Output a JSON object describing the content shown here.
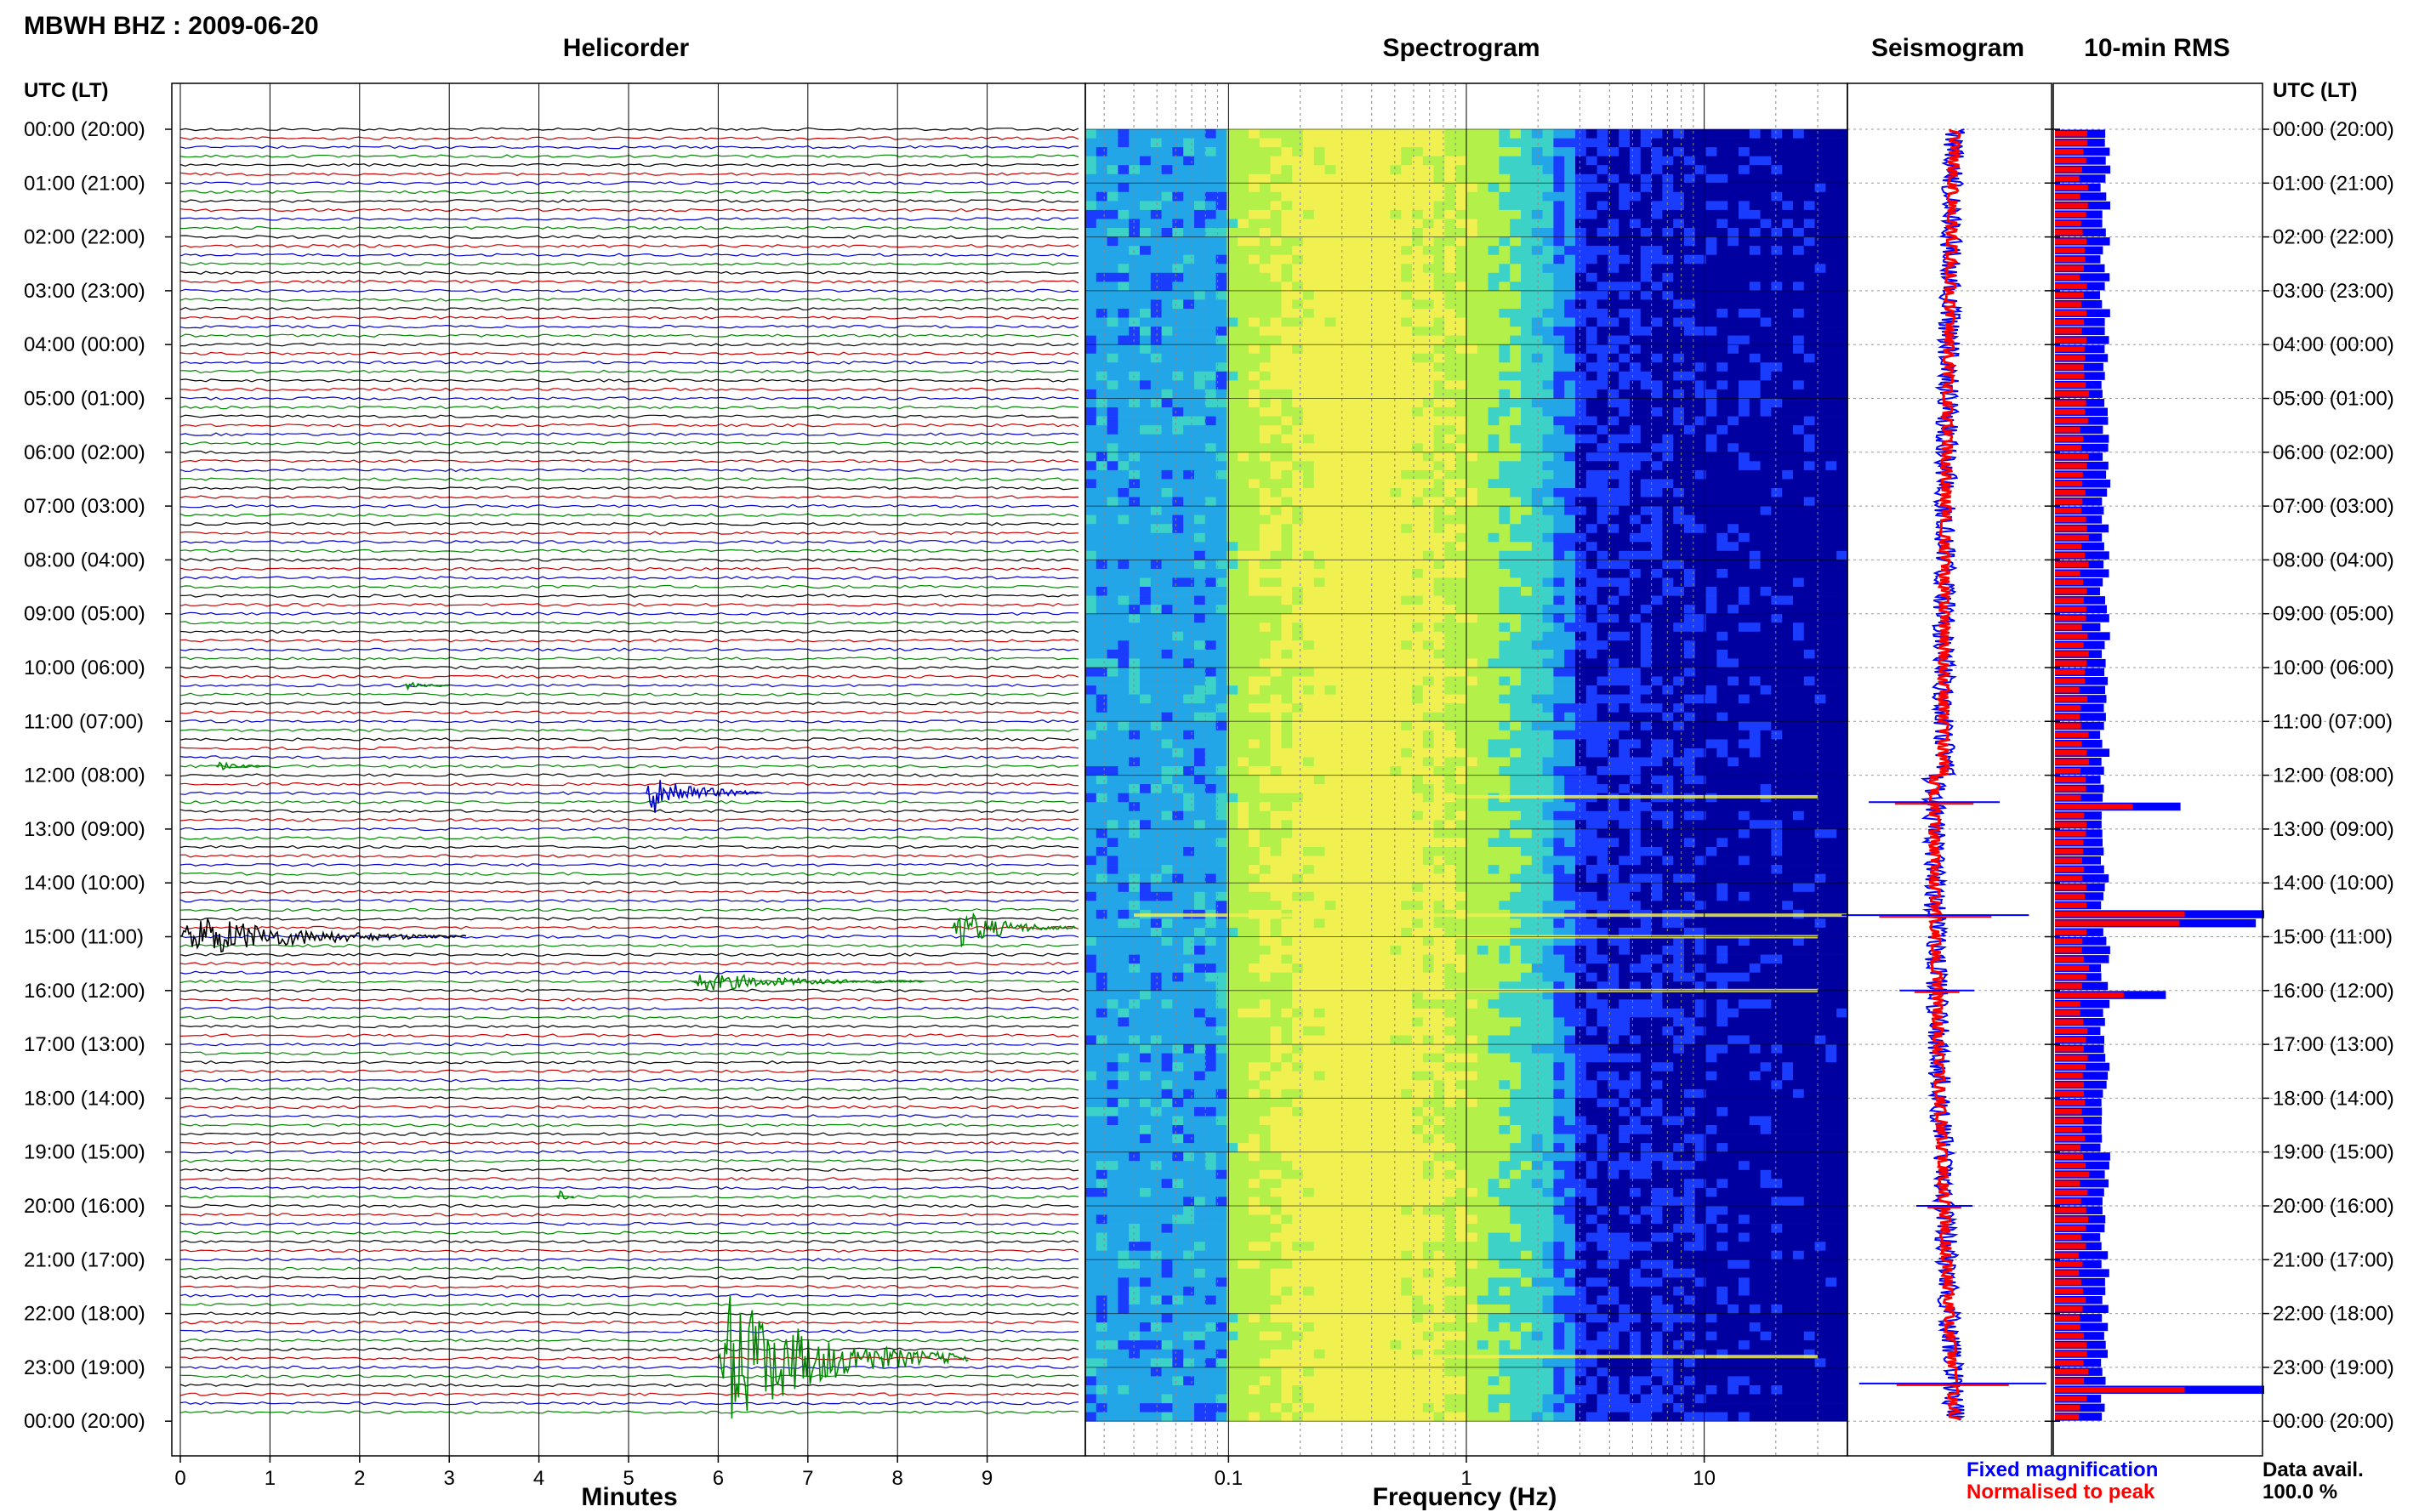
{
  "header": {
    "station_title": "MBWH BHZ : 2009-06-20",
    "panel_helicorder": "Helicorder",
    "panel_spectrogram": "Spectrogram",
    "panel_seismogram": "Seismogram",
    "panel_rms": "10-min RMS",
    "time_axis_left": "UTC (LT)",
    "time_axis_right": "UTC (LT)"
  },
  "footer": {
    "minutes_axis": "Minutes",
    "frequency_axis": "Frequency (Hz)",
    "legend_fixed": "Fixed magnification",
    "legend_normalised": "Normalised to peak",
    "data_avail_label": "Data avail.",
    "data_avail_value": "100.0 %"
  },
  "chart_data": [
    {
      "type": "line",
      "panel": "Helicorder",
      "xlabel": "Minutes",
      "ylabel": "UTC (LT)",
      "x_ticks": [
        "0",
        "1",
        "2",
        "3",
        "4",
        "5",
        "6",
        "7",
        "8",
        "9"
      ],
      "xlim": [
        0,
        10
      ],
      "time_labels": [
        "00:00 (20:00)",
        "01:00 (21:00)",
        "02:00 (22:00)",
        "03:00 (23:00)",
        "04:00 (00:00)",
        "05:00 (01:00)",
        "06:00 (02:00)",
        "07:00 (03:00)",
        "08:00 (04:00)",
        "09:00 (05:00)",
        "10:00 (06:00)",
        "11:00 (07:00)",
        "12:00 (08:00)",
        "13:00 (09:00)",
        "14:00 (10:00)",
        "15:00 (11:00)",
        "16:00 (12:00)",
        "17:00 (13:00)",
        "18:00 (14:00)",
        "19:00 (15:00)",
        "20:00 (16:00)",
        "21:00 (17:00)",
        "22:00 (18:00)",
        "23:00 (19:00)",
        "00:00 (20:00)"
      ],
      "trace_colors": [
        "#000000",
        "#cc0000",
        "#0000cc",
        "#008800"
      ],
      "events": [
        {
          "hour": 10.33,
          "start_min": 2.5,
          "dur_min": 0.5,
          "amp": 0.25,
          "color": "#008800"
        },
        {
          "hour": 11.83,
          "start_min": 0.4,
          "dur_min": 0.6,
          "amp": 0.25,
          "color": "#008800"
        },
        {
          "hour": 12.33,
          "start_min": 5.2,
          "dur_min": 1.3,
          "amp": 1.3,
          "color": "#0000cc"
        },
        {
          "hour": 14.83,
          "start_min": 8.6,
          "dur_min": 1.4,
          "amp": 1.2,
          "color": "#008800"
        },
        {
          "hour": 15.0,
          "start_min": 0.0,
          "dur_min": 3.2,
          "amp": 1.3,
          "color": "#000000"
        },
        {
          "hour": 15.83,
          "start_min": 5.7,
          "dur_min": 2.6,
          "amp": 0.6,
          "color": "#008800"
        },
        {
          "hour": 19.83,
          "start_min": 4.2,
          "dur_min": 0.2,
          "amp": 0.5,
          "color": "#008800"
        },
        {
          "hour": 22.83,
          "start_min": 6.0,
          "dur_min": 2.8,
          "amp": 4.0,
          "color": "#008800"
        }
      ]
    },
    {
      "type": "heatmap",
      "panel": "Spectrogram",
      "xlabel": "Frequency (Hz)",
      "x_scale": "log",
      "xlim": [
        0.025,
        40
      ],
      "x_ticks": [
        "0.1",
        "1",
        "10"
      ],
      "colormap": [
        "#0000a0",
        "#1a3cff",
        "#22a6e8",
        "#3cd2c8",
        "#b4f04a",
        "#f0f050"
      ],
      "events": [
        {
          "hour": 12.4,
          "fmin": 0.8,
          "fmax": 30
        },
        {
          "hour": 14.6,
          "fmin": 0.04,
          "fmax": 40
        },
        {
          "hour": 15.0,
          "fmin": 0.9,
          "fmax": 30
        },
        {
          "hour": 16.0,
          "fmin": 0.5,
          "fmax": 30
        },
        {
          "hour": 22.8,
          "fmin": 0.6,
          "fmax": 30
        }
      ]
    },
    {
      "type": "line",
      "panel": "Seismogram",
      "series": [
        {
          "name": "Fixed magnification",
          "color": "#0000ff"
        },
        {
          "name": "Normalised to peak",
          "color": "#ff0000"
        }
      ],
      "spikes": [
        {
          "hour": 12.5,
          "width": 0.7
        },
        {
          "hour": 14.6,
          "width": 1.0
        },
        {
          "hour": 16.0,
          "width": 0.4
        },
        {
          "hour": 20.0,
          "width": 0.3
        },
        {
          "hour": 23.3,
          "width": 1.0
        }
      ]
    },
    {
      "type": "bar",
      "panel": "10-min RMS",
      "series": [
        {
          "name": "Normalised to peak",
          "color": "#ff0000"
        },
        {
          "name": "Fixed magnification",
          "color": "#0000ff"
        }
      ],
      "xlim": [
        0,
        1
      ],
      "base_rms": 0.24,
      "peaks": [
        {
          "hour": 12.5,
          "value": 0.6
        },
        {
          "hour": 14.5,
          "value": 1.0
        },
        {
          "hour": 14.67,
          "value": 0.96
        },
        {
          "hour": 16.0,
          "value": 0.53
        },
        {
          "hour": 23.3,
          "value": 1.0
        }
      ]
    }
  ]
}
